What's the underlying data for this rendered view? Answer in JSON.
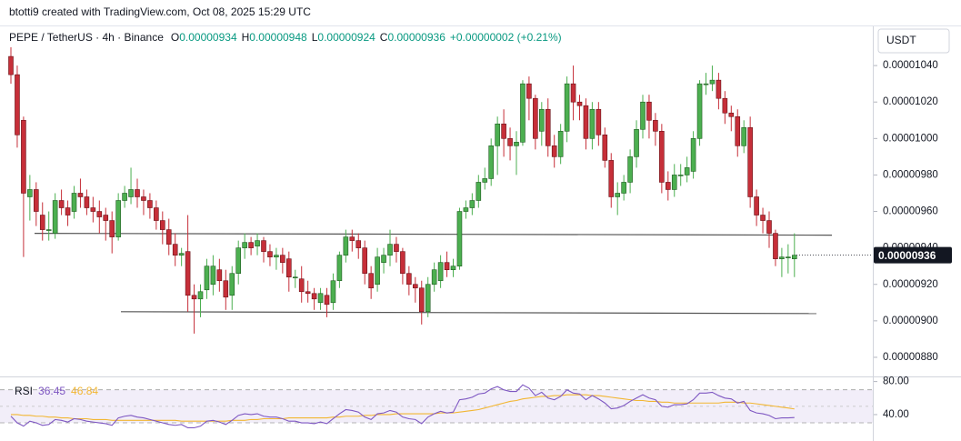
{
  "chart_data": {
    "type": "candlestick",
    "title": "btotti9 created with TradingView.com, Oct 08, 2025 15:29 UTC",
    "symbol": "PEPE / TetherUS · 4h · Binance",
    "ohlc": [
      {
        "label": "O",
        "value": 9.34e-06
      },
      {
        "label": "H",
        "value": 9.48e-06
      },
      {
        "label": "L",
        "value": 9.24e-06
      },
      {
        "label": "C",
        "value": 9.36e-06
      }
    ],
    "change": "+0.00000002 (+0.21%)",
    "currency": "USDT",
    "last_price": 9.36e-06,
    "up_color": "#4caf50",
    "down_color": "#c62f39",
    "open": [
      1.045e-05,
      1.035e-05,
      1.01e-05,
      9.68e-06,
      9.72e-06,
      9.58e-06,
      9.5e-06,
      9.48e-06,
      9.66e-06,
      9.62e-06,
      9.6e-06,
      9.7e-06,
      9.68e-06,
      9.62e-06,
      9.6e-06,
      9.58e-06,
      9.55e-06,
      9.46e-06,
      9.66e-06,
      9.68e-06,
      9.72e-06,
      9.68e-06,
      9.66e-06,
      9.62e-06,
      9.55e-06,
      9.5e-06,
      9.42e-06,
      9.36e-06,
      9.38e-06,
      9.14e-06,
      9.12e-06,
      9.17e-06,
      9.2e-06,
      9.28e-06,
      9.22e-06,
      9.14e-06,
      9.26e-06,
      9.4e-06,
      9.43e-06,
      9.41e-06,
      9.44e-06,
      9.38e-06,
      9.35e-06,
      9.36e-06,
      9.34e-06,
      9.24e-06,
      9.23e-06,
      9.16e-06,
      9.15e-06,
      9.1e-06,
      9.14e-06,
      9.1e-06,
      9.22e-06,
      9.36e-06,
      9.46e-06,
      9.44e-06,
      9.4e-06,
      9.26e-06,
      9.2e-06,
      9.32e-06,
      9.36e-06,
      9.42e-06,
      9.38e-06,
      9.26e-06,
      9.2e-06,
      9.18e-06,
      9.05e-06,
      9.2e-06,
      9.22e-06,
      9.32e-06,
      9.28e-06,
      9.3e-06,
      9.6e-06,
      9.62e-06,
      9.66e-06,
      9.76e-06,
      9.78e-06,
      9.96e-06,
      1.008e-05,
      1e-05,
      9.96e-06,
      9.98e-06,
      1.03e-05,
      1.022e-05,
      1.004e-05,
      1.016e-05,
      9.96e-06,
      9.9e-06,
      1.004e-05,
      1.03e-05,
      1.02e-05,
      1.018e-05,
      1e-05,
      1.016e-05,
      1.002e-05,
      9.88e-06,
      9.68e-06,
      9.7e-06,
      9.76e-06,
      9.9e-06,
      1.005e-05,
      1.02e-05,
      1.01e-05,
      1.004e-05,
      9.76e-06,
      9.72e-06,
      9.8e-06,
      9.8e-06,
      9.82e-06,
      1e-05,
      1.03e-05,
      1.03e-05,
      1.032e-05,
      1.022e-05,
      1.014e-05,
      1.012e-05,
      9.96e-06,
      1.006e-05,
      9.68e-06,
      9.58e-06,
      9.55e-06,
      9.48e-06,
      9.34e-06,
      9.35e-06,
      9.34e-06
    ],
    "high": [
      1.05e-05,
      1.04e-05,
      1.012e-05,
      9.8e-06,
      9.76e-06,
      9.65e-06,
      9.6e-06,
      9.7e-06,
      9.72e-06,
      9.66e-06,
      9.74e-06,
      9.78e-06,
      9.72e-06,
      9.68e-06,
      9.66e-06,
      9.62e-06,
      9.6e-06,
      9.7e-06,
      9.74e-06,
      9.84e-06,
      9.78e-06,
      9.72e-06,
      9.7e-06,
      9.66e-06,
      9.6e-06,
      9.56e-06,
      9.48e-06,
      9.4e-06,
      9.58e-06,
      9.2e-06,
      9.2e-06,
      9.34e-06,
      9.36e-06,
      9.34e-06,
      9.28e-06,
      9.3e-06,
      9.44e-06,
      9.48e-06,
      9.46e-06,
      9.48e-06,
      9.46e-06,
      9.42e-06,
      9.4e-06,
      9.4e-06,
      9.38e-06,
      9.28e-06,
      9.3e-06,
      9.22e-06,
      9.18e-06,
      9.18e-06,
      9.18e-06,
      9.26e-06,
      9.38e-06,
      9.5e-06,
      9.5e-06,
      9.48e-06,
      9.44e-06,
      9.3e-06,
      9.4e-06,
      9.4e-06,
      9.5e-06,
      9.46e-06,
      9.4e-06,
      9.3e-06,
      9.24e-06,
      9.22e-06,
      9.24e-06,
      9.32e-06,
      9.36e-06,
      9.38e-06,
      9.34e-06,
      9.62e-06,
      9.66e-06,
      9.7e-06,
      9.8e-06,
      9.84e-06,
      1e-05,
      1.012e-05,
      1.016e-05,
      1.006e-05,
      1.004e-05,
      1.032e-05,
      1.034e-05,
      1.024e-05,
      1.02e-05,
      1.022e-05,
      1.002e-05,
      1.008e-05,
      1.034e-05,
      1.04e-05,
      1.024e-05,
      1.022e-05,
      1.02e-05,
      1.02e-05,
      1.006e-05,
      9.92e-06,
      9.76e-06,
      9.8e-06,
      9.94e-06,
      1.01e-05,
      1.024e-05,
      1.024e-05,
      1.014e-05,
      1.008e-05,
      9.82e-06,
      9.86e-06,
      9.86e-06,
      9.9e-06,
      1.004e-05,
      1.032e-05,
      1.036e-05,
      1.04e-05,
      1.036e-05,
      1.026e-05,
      1.018e-05,
      1.016e-05,
      1.01e-05,
      1.012e-05,
      9.72e-06,
      9.62e-06,
      9.6e-06,
      9.5e-06,
      9.4e-06,
      9.42e-06,
      9.48e-06
    ],
    "low": [
      1.03e-05,
      9.95e-06,
      9.35e-06,
      9.55e-06,
      9.52e-06,
      9.44e-06,
      9.44e-06,
      9.45e-06,
      9.58e-06,
      9.52e-06,
      9.56e-06,
      9.62e-06,
      9.58e-06,
      9.54e-06,
      9.48e-06,
      9.44e-06,
      9.37e-06,
      9.44e-06,
      9.62e-06,
      9.64e-06,
      9.62e-06,
      9.58e-06,
      9.56e-06,
      9.5e-06,
      9.42e-06,
      9.36e-06,
      9.3e-06,
      9.3e-06,
      9.05e-06,
      8.93e-06,
      9.02e-06,
      9.12e-06,
      9.14e-06,
      9.16e-06,
      9.06e-06,
      9.06e-06,
      9.2e-06,
      9.34e-06,
      9.36e-06,
      9.36e-06,
      9.32e-06,
      9.3e-06,
      9.28e-06,
      9.26e-06,
      9.16e-06,
      9.18e-06,
      9.1e-06,
      9.1e-06,
      9.06e-06,
      9.06e-06,
      9.02e-06,
      9.06e-06,
      9.18e-06,
      9.32e-06,
      9.38e-06,
      9.34e-06,
      9.2e-06,
      9.12e-06,
      9.16e-06,
      9.26e-06,
      9.3e-06,
      9.32e-06,
      9.2e-06,
      9.14e-06,
      9.1e-06,
      8.98e-06,
      9.02e-06,
      9.16e-06,
      9.18e-06,
      9.24e-06,
      9.24e-06,
      9.28e-06,
      9.56e-06,
      9.58e-06,
      9.62e-06,
      9.72e-06,
      9.74e-06,
      9.8e-06,
      9.9e-06,
      9.88e-06,
      9.8e-06,
      9.96e-06,
      1.01e-05,
      9.94e-06,
      9.96e-06,
      9.9e-06,
      9.84e-06,
      9.86e-06,
      9.98e-06,
      1.01e-05,
      1.01e-05,
      9.94e-06,
      9.94e-06,
      9.96e-06,
      9.84e-06,
      9.62e-06,
      9.58e-06,
      9.66e-06,
      9.7e-06,
      9.84e-06,
      1e-05,
      1e-05,
      9.96e-06,
      9.7e-06,
      9.66e-06,
      9.68e-06,
      9.74e-06,
      9.76e-06,
      9.78e-06,
      9.96e-06,
      1.024e-05,
      1.026e-05,
      1.016e-05,
      1.008e-05,
      1.004e-05,
      9.9e-06,
      9.92e-06,
      9.62e-06,
      9.52e-06,
      9.48e-06,
      9.4e-06,
      9.3e-06,
      9.24e-06,
      9.26e-06,
      9.24e-06
    ],
    "close": [
      1.035e-05,
      1.002e-05,
      9.7e-06,
      9.72e-06,
      9.6e-06,
      9.5e-06,
      9.5e-06,
      9.66e-06,
      9.62e-06,
      9.58e-06,
      9.7e-06,
      9.68e-06,
      9.62e-06,
      9.6e-06,
      9.57e-06,
      9.55e-06,
      9.46e-06,
      9.66e-06,
      9.7e-06,
      9.72e-06,
      9.68e-06,
      9.66e-06,
      9.62e-06,
      9.55e-06,
      9.5e-06,
      9.42e-06,
      9.36e-06,
      9.37e-06,
      9.14e-06,
      9.12e-06,
      9.16e-06,
      9.3e-06,
      9.3e-06,
      9.22e-06,
      9.13e-06,
      9.26e-06,
      9.4e-06,
      9.43e-06,
      9.4e-06,
      9.44e-06,
      9.38e-06,
      9.35e-06,
      9.36e-06,
      9.32e-06,
      9.24e-06,
      9.24e-06,
      9.16e-06,
      9.15e-06,
      9.12e-06,
      9.15e-06,
      9.09e-06,
      9.22e-06,
      9.36e-06,
      9.46e-06,
      9.44e-06,
      9.4e-06,
      9.26e-06,
      9.18e-06,
      9.35e-06,
      9.36e-06,
      9.42e-06,
      9.38e-06,
      9.26e-06,
      9.2e-06,
      9.18e-06,
      9.05e-06,
      9.2e-06,
      9.28e-06,
      9.32e-06,
      9.28e-06,
      9.3e-06,
      9.6e-06,
      9.62e-06,
      9.66e-06,
      9.76e-06,
      9.78e-06,
      9.96e-06,
      1.008e-05,
      1e-05,
      9.96e-06,
      9.98e-06,
      1.03e-05,
      1.022e-05,
      1e-05,
      1.016e-05,
      9.96e-06,
      9.9e-06,
      1.004e-05,
      1.03e-05,
      1.02e-05,
      1.018e-05,
      1e-05,
      1.016e-05,
      1.002e-05,
      9.88e-06,
      9.68e-06,
      9.7e-06,
      9.76e-06,
      9.9e-06,
      1.005e-05,
      1.02e-05,
      1.01e-05,
      1.004e-05,
      9.76e-06,
      9.72e-06,
      9.8e-06,
      9.8e-06,
      9.84e-06,
      1e-05,
      1.03e-05,
      1.03e-05,
      1.032e-05,
      1.022e-05,
      1.014e-05,
      1.012e-05,
      9.96e-06,
      1.006e-05,
      9.68e-06,
      9.58e-06,
      9.55e-06,
      9.48e-06,
      9.34e-06,
      9.35e-06,
      9.35e-06,
      9.36e-06
    ],
    "ylim": [
      8.715e-06,
      1.061e-05
    ],
    "yticks": [
      {
        "value": 8.8e-06,
        "label": "0.00000880"
      },
      {
        "value": 9e-06,
        "label": "0.00000900"
      },
      {
        "value": 9.2e-06,
        "label": "0.00000920"
      },
      {
        "value": 9.4e-06,
        "label": "0.00000940"
      },
      {
        "value": 9.6e-06,
        "label": "0.00000960"
      },
      {
        "value": 9.8e-06,
        "label": "0.00000980"
      },
      {
        "value": 1e-05,
        "label": "0.00001000"
      },
      {
        "value": 1.02e-05,
        "label": "0.00001020"
      },
      {
        "value": 1.04e-05,
        "label": "0.00001040"
      }
    ],
    "lines": [
      {
        "start": 9.48e-06,
        "end": 9.47e-06
      },
      {
        "start": 9.05e-06,
        "end": 9.04e-06
      }
    ],
    "rsi": {
      "name": "RSI",
      "color": "#7e57c2",
      "ma_color": "#f2b632",
      "ylim": [
        8,
        84
      ],
      "yticks": [
        {
          "value": 80,
          "label": "80.00"
        },
        {
          "value": 40,
          "label": "40.00"
        }
      ],
      "band": [
        30,
        70
      ],
      "mid": 50,
      "values": [
        38,
        30,
        26,
        32,
        30,
        27,
        28,
        34,
        33,
        31,
        35,
        34,
        32,
        31,
        30,
        29,
        27,
        36,
        38,
        39,
        37,
        36,
        34,
        32,
        30,
        28,
        27,
        28,
        24,
        24,
        26,
        32,
        33,
        31,
        28,
        33,
        39,
        41,
        40,
        41,
        38,
        37,
        37,
        35,
        32,
        32,
        30,
        30,
        29,
        31,
        29,
        35,
        41,
        46,
        45,
        43,
        37,
        34,
        41,
        42,
        45,
        43,
        37,
        35,
        34,
        29,
        37,
        41,
        44,
        42,
        43,
        58,
        59,
        61,
        65,
        66,
        71,
        74,
        70,
        68,
        68,
        76,
        72,
        63,
        67,
        60,
        58,
        62,
        70,
        66,
        65,
        58,
        63,
        59,
        54,
        47,
        48,
        51,
        56,
        60,
        64,
        60,
        58,
        50,
        49,
        52,
        52,
        53,
        58,
        66,
        66,
        67,
        63,
        60,
        59,
        54,
        56,
        45,
        42,
        41,
        39,
        35,
        36,
        36,
        36.45
      ],
      "ma": [
        40,
        40,
        39,
        39,
        38,
        38,
        37,
        37,
        36,
        36,
        35,
        35,
        35,
        34,
        34,
        34,
        33,
        33,
        33,
        33,
        33,
        33,
        33,
        33,
        33,
        33,
        33,
        32,
        32,
        32,
        32,
        32,
        32,
        32,
        32,
        33,
        33,
        33,
        34,
        34,
        35,
        35,
        35,
        35,
        36,
        36,
        36,
        36,
        36,
        36,
        36,
        37,
        37,
        38,
        38,
        38,
        39,
        39,
        40,
        40,
        40,
        41,
        41,
        41,
        41,
        41,
        41,
        41,
        42,
        42,
        42,
        43,
        44,
        45,
        46,
        48,
        50,
        52,
        54,
        56,
        57,
        59,
        60,
        61,
        62,
        62,
        63,
        63,
        64,
        64,
        64,
        64,
        63,
        63,
        62,
        61,
        60,
        59,
        58,
        57,
        57,
        56,
        56,
        55,
        55,
        54,
        54,
        54,
        54,
        54,
        54,
        54,
        54,
        55,
        55,
        55,
        54,
        54,
        53,
        52,
        51,
        50,
        49,
        48,
        46.84
      ]
    }
  }
}
